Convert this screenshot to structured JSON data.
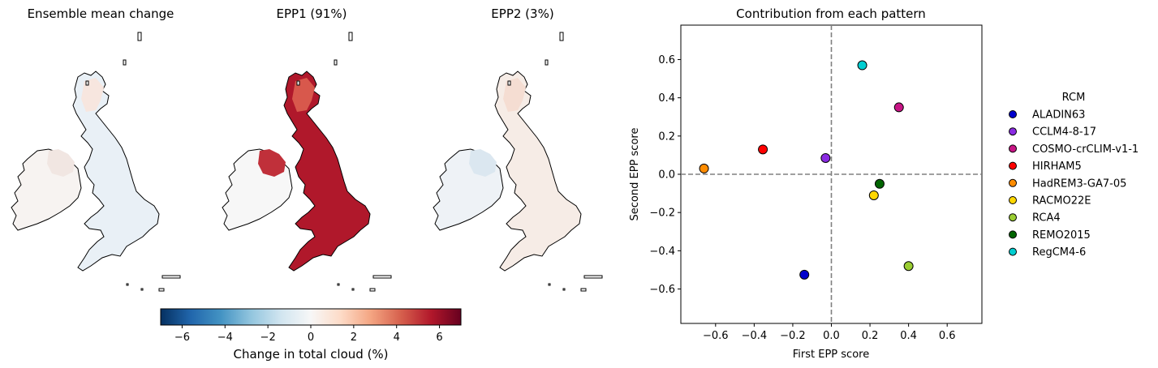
{
  "maps": {
    "panels": [
      {
        "title": "Ensemble mean change"
      },
      {
        "title": "EPP1 (91%)"
      },
      {
        "title": "EPP2 (3%)"
      }
    ],
    "colorbar": {
      "label": "Change in total cloud (%)",
      "ticks": [
        -6,
        -4,
        -2,
        0,
        2,
        4,
        6
      ],
      "range": [
        -7,
        7
      ],
      "colormap": "RdBu_r",
      "stops": [
        "#053061",
        "#2166ac",
        "#4393c3",
        "#92c5de",
        "#d1e5f0",
        "#f7f7f7",
        "#fddbc7",
        "#f4a582",
        "#d6604d",
        "#b2182b",
        "#67001f"
      ]
    }
  },
  "chart_data": {
    "type": "scatter",
    "title": "Contribution from each pattern",
    "xlabel": "First EPP score",
    "ylabel": "Second EPP score",
    "xlim": [
      -0.78,
      0.78
    ],
    "ylim": [
      -0.78,
      0.78
    ],
    "xticks": [
      -0.6,
      -0.4,
      -0.2,
      0.0,
      0.2,
      0.4,
      0.6
    ],
    "yticks": [
      -0.6,
      -0.4,
      -0.2,
      0.0,
      0.2,
      0.4,
      0.6
    ],
    "xtick_labels": [
      "−0.6",
      "−0.4",
      "−0.2",
      "0.0",
      "0.2",
      "0.4",
      "0.6"
    ],
    "ytick_labels": [
      "−0.6",
      "−0.4",
      "−0.2",
      "0.0",
      "0.2",
      "0.4",
      "0.6"
    ],
    "reference_lines": {
      "x": 0,
      "y": 0,
      "style": "dashed",
      "color": "#808080"
    },
    "legend": {
      "title": "RCM",
      "placement": "outside-right"
    },
    "series": [
      {
        "name": "ALADIN63",
        "x": -0.14,
        "y": -0.525,
        "color": "#0000cd"
      },
      {
        "name": "CCLM4-8-17",
        "x": -0.03,
        "y": 0.085,
        "color": "#8a2be2"
      },
      {
        "name": "COSMO-crCLIM-v1-1",
        "x": 0.35,
        "y": 0.35,
        "color": "#c71585"
      },
      {
        "name": "HIRHAM5",
        "x": -0.355,
        "y": 0.13,
        "color": "#ff0000"
      },
      {
        "name": "HadREM3-GA7-05",
        "x": -0.66,
        "y": 0.03,
        "color": "#ff8c00"
      },
      {
        "name": "RACMO22E",
        "x": 0.22,
        "y": -0.11,
        "color": "#ffd700"
      },
      {
        "name": "RCA4",
        "x": 0.4,
        "y": -0.48,
        "color": "#9acd32"
      },
      {
        "name": "REMO2015",
        "x": 0.25,
        "y": -0.05,
        "color": "#006400"
      },
      {
        "name": "RegCM4-6",
        "x": 0.16,
        "y": 0.57,
        "color": "#00ced1"
      }
    ]
  }
}
